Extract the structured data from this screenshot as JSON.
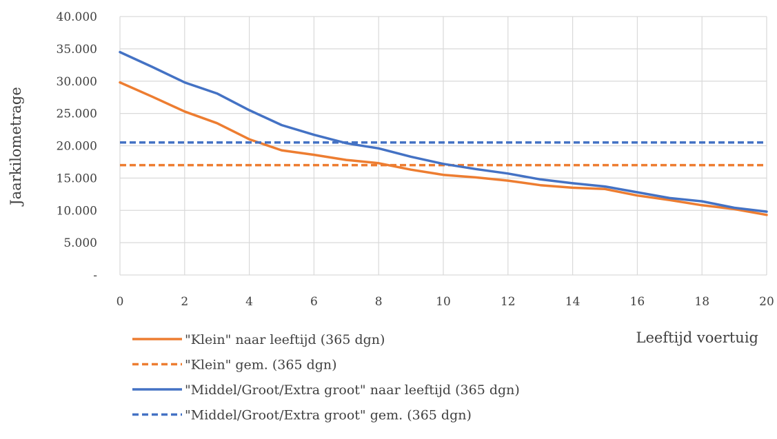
{
  "chart_data": {
    "type": "line",
    "xlabel": "Leeftijd voertuig",
    "ylabel": "Jaarkilometrage",
    "xlim": [
      0,
      20
    ],
    "ylim": [
      0,
      40000
    ],
    "x_ticks": [
      "0",
      "2",
      "4",
      "6",
      "8",
      "10",
      "12",
      "14",
      "16",
      "18",
      "20"
    ],
    "y_ticks": [
      "-",
      "5.000",
      "10.000",
      "15.000",
      "20.000",
      "25.000",
      "30.000",
      "35.000",
      "40.000"
    ],
    "grid": true,
    "legend_position": "bottom-left",
    "series": [
      {
        "name": "\"Klein\" naar leeftijd (365 dgn)",
        "color": "#ED7D31",
        "dash": "solid",
        "x": [
          0,
          1,
          2,
          3,
          4,
          5,
          6,
          7,
          8,
          9,
          10,
          11,
          12,
          13,
          14,
          15,
          16,
          17,
          18,
          19,
          20
        ],
        "values": [
          29800,
          27600,
          25300,
          23500,
          21000,
          19300,
          18600,
          17800,
          17300,
          16300,
          15500,
          15100,
          14600,
          13900,
          13500,
          13300,
          12300,
          11600,
          10800,
          10200,
          9300
        ]
      },
      {
        "name": "\"Klein\" gem. (365 dgn)",
        "color": "#ED7D31",
        "dash": "dashed",
        "x": [
          0,
          20
        ],
        "values": [
          17000,
          17000
        ]
      },
      {
        "name": "\"Middel/Groot/Extra groot\" naar leeftijd (365 dgn)",
        "color": "#4472C4",
        "dash": "solid",
        "x": [
          0,
          1,
          2,
          3,
          4,
          5,
          6,
          7,
          8,
          9,
          10,
          11,
          12,
          13,
          14,
          15,
          16,
          17,
          18,
          19,
          20
        ],
        "values": [
          34500,
          32200,
          29800,
          28100,
          25500,
          23200,
          21700,
          20400,
          19600,
          18300,
          17200,
          16400,
          15700,
          14800,
          14200,
          13700,
          12800,
          11900,
          11400,
          10400,
          9800
        ]
      },
      {
        "name": "\"Middel/Groot/Extra groot\" gem. (365 dgn)",
        "color": "#4472C4",
        "dash": "dashed",
        "x": [
          0,
          20
        ],
        "values": [
          20500,
          20500
        ]
      }
    ]
  }
}
